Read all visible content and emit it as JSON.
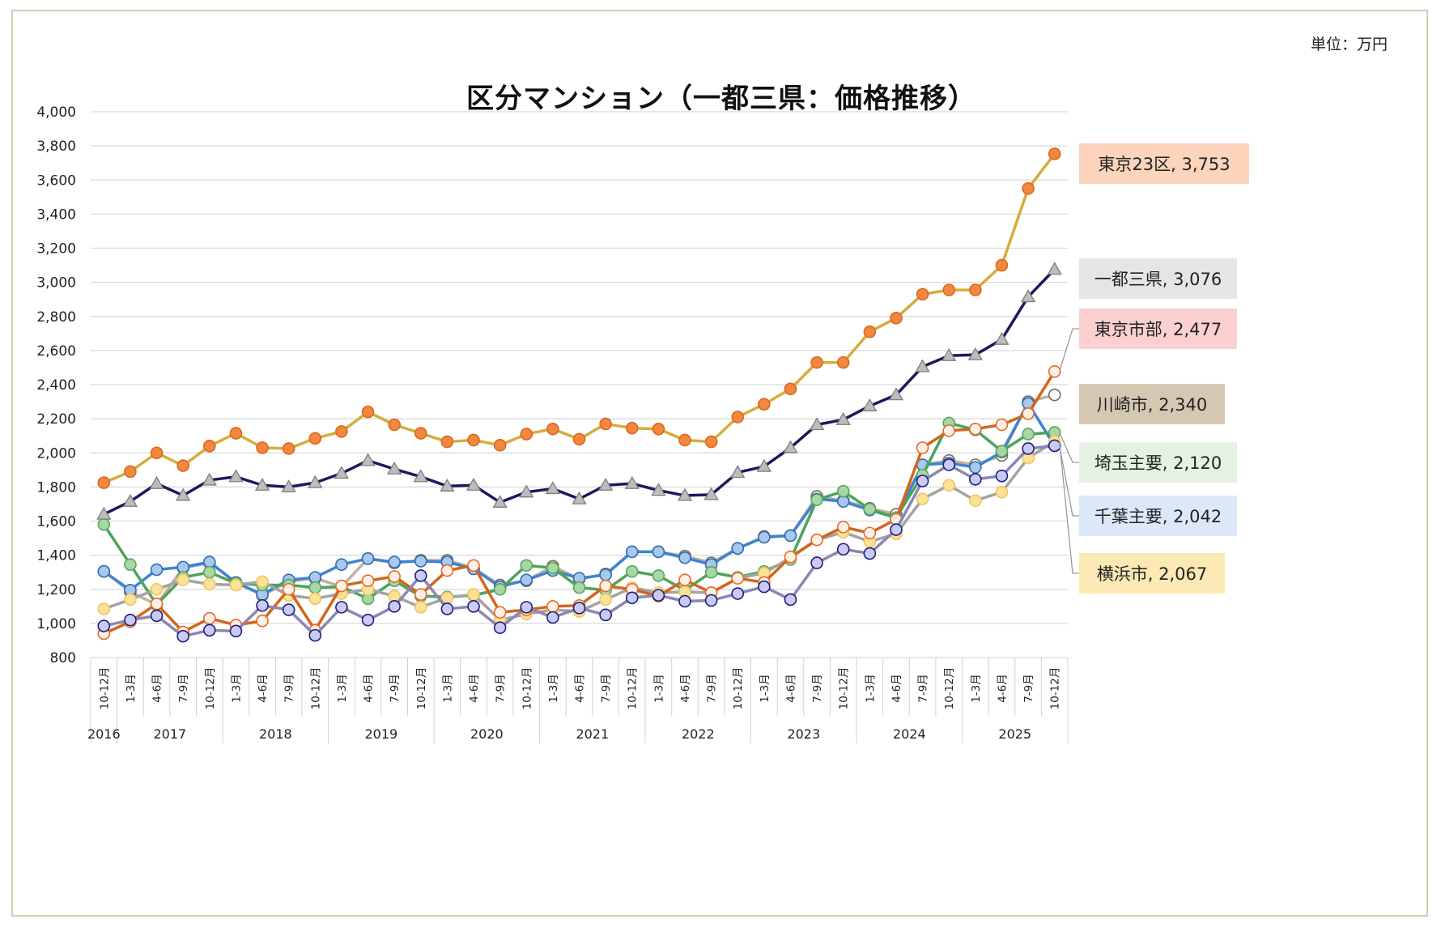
{
  "unit_label": "単位：万円",
  "chart_data": {
    "type": "line",
    "title": "区分マンション（一都三県：価格推移）",
    "ylabel": "",
    "xlabel": "",
    "ylim": [
      800,
      4000
    ],
    "y_ticks": [
      800,
      1000,
      1200,
      1400,
      1600,
      1800,
      2000,
      2200,
      2400,
      2600,
      2800,
      3000,
      3200,
      3400,
      3600,
      3800,
      4000
    ],
    "grid": true,
    "categories": [
      "10-12月",
      "1-3月",
      "4-6月",
      "7-9月",
      "10-12月",
      "1-3月",
      "4-6月",
      "7-9月",
      "10-12月",
      "1-3月",
      "4-6月",
      "7-9月",
      "10-12月",
      "1-3月",
      "4-6月",
      "7-9月",
      "10-12月",
      "1-3月",
      "4-6月",
      "7-9月",
      "10-12月",
      "1-3月",
      "4-6月",
      "7-9月",
      "10-12月",
      "1-3月",
      "4-6月",
      "7-9月",
      "10-12月",
      "1-3月",
      "4-6月",
      "7-9月",
      "10-12月",
      "1-3月",
      "4-6月",
      "7-9月",
      "10-12月"
    ],
    "years": [
      {
        "label": "2016",
        "start": 0,
        "end": 0
      },
      {
        "label": "2017",
        "start": 1,
        "end": 4
      },
      {
        "label": "2018",
        "start": 5,
        "end": 8
      },
      {
        "label": "2019",
        "start": 9,
        "end": 12
      },
      {
        "label": "2020",
        "start": 13,
        "end": 16
      },
      {
        "label": "2021",
        "start": 17,
        "end": 20
      },
      {
        "label": "2022",
        "start": 21,
        "end": 24
      },
      {
        "label": "2023",
        "start": 25,
        "end": 28
      },
      {
        "label": "2024",
        "start": 29,
        "end": 32
      },
      {
        "label": "2025",
        "start": 33,
        "end": 36
      }
    ],
    "series": [
      {
        "name": "川崎市",
        "line_color": "#bfb3a0",
        "fill": "#ffffff",
        "stroke": "#7a6a55",
        "marker": "circle",
        "label_text": "川崎市, 2,340",
        "label_bg": "#d5c8b3",
        "label_anchor": 1680,
        "values": [
          1305,
          1185,
          1110,
          1325,
          1355,
          1240,
          1165,
          1245,
          1265,
          1215,
          1380,
          1355,
          1370,
          1370,
          1325,
          1225,
          1250,
          1335,
          1260,
          1290,
          1420,
          1420,
          1395,
          1355,
          1440,
          1510,
          1515,
          1745,
          1720,
          1675,
          1640,
          1930,
          1955,
          1930,
          1985,
          2300,
          2340
        ]
      },
      {
        "name": "千葉主要",
        "line_color": "#3f84d1",
        "fill": "#a9c8ec",
        "stroke": "#2f6db6",
        "marker": "circle",
        "label_text": "千葉主要, 2,042",
        "label_bg": "#dce8f8",
        "label_anchor": 1400,
        "values": [
          1305,
          1195,
          1315,
          1330,
          1360,
          1240,
          1170,
          1255,
          1270,
          1345,
          1380,
          1360,
          1365,
          1360,
          1320,
          1215,
          1255,
          1310,
          1265,
          1285,
          1420,
          1420,
          1385,
          1345,
          1440,
          1505,
          1515,
          1730,
          1715,
          1665,
          1620,
          1930,
          1940,
          1915,
          2005,
          2290,
          2042
        ]
      },
      {
        "name": "埼玉主要",
        "line_color": "#4fa35a",
        "fill": "#a6d7a4",
        "stroke": "#5aa55f",
        "marker": "circle",
        "label_text": "埼玉主要, 2,120",
        "label_bg": "#e5f2e3",
        "label_anchor": 1490,
        "values": [
          1580,
          1345,
          1110,
          1270,
          1300,
          1235,
          1225,
          1225,
          1210,
          1215,
          1145,
          1250,
          1160,
          1155,
          1165,
          1200,
          1340,
          1325,
          1210,
          1195,
          1305,
          1280,
          1195,
          1300,
          1270,
          1305,
          1375,
          1725,
          1775,
          1670,
          1620,
          1870,
          2175,
          2135,
          2010,
          2110,
          2120
        ]
      },
      {
        "name": "横浜市",
        "line_color": "#a3a3a3",
        "fill": "#fbe29a",
        "stroke": "#f2c45c",
        "marker": "circle",
        "label_text": "横浜市, 2,067",
        "label_bg": "#fbe8b4",
        "label_anchor": 1260,
        "values": [
          1085,
          1140,
          1200,
          1255,
          1230,
          1225,
          1245,
          1165,
          1145,
          1175,
          1200,
          1160,
          1095,
          1150,
          1170,
          1020,
          1055,
          1080,
          1070,
          1140,
          1210,
          1180,
          1185,
          1180,
          1265,
          1295,
          1385,
          1490,
          1535,
          1480,
          1525,
          1730,
          1810,
          1720,
          1770,
          1970,
          2067
        ]
      },
      {
        "name": "東京市部",
        "line_color": "#d2661c",
        "fill": "#fdf0e6",
        "stroke": "#e46b2b",
        "marker": "circle",
        "label_text": "東京市部, 2,477",
        "label_bg": "#fbd0d0",
        "label_anchor": 1575,
        "values": [
          940,
          1010,
          1115,
          950,
          1030,
          990,
          1015,
          1200,
          960,
          1220,
          1250,
          1275,
          1170,
          1310,
          1340,
          1065,
          1080,
          1100,
          1105,
          1220,
          1200,
          1160,
          1255,
          1180,
          1265,
          1240,
          1390,
          1490,
          1565,
          1530,
          1610,
          2030,
          2130,
          2140,
          2165,
          2230,
          2477
        ]
      },
      {
        "name": "一都三県",
        "line_color": "#1a1a5e",
        "fill": "#bdbdbd",
        "stroke": "#7d7d7d",
        "marker": "triangle",
        "label_text": "一都三県, 3,076",
        "label_bg": "#e5e5e5",
        "label_anchor": 0,
        "values": [
          1640,
          1715,
          1820,
          1750,
          1840,
          1860,
          1810,
          1800,
          1825,
          1880,
          1955,
          1905,
          1860,
          1805,
          1810,
          1710,
          1770,
          1790,
          1730,
          1810,
          1820,
          1780,
          1750,
          1755,
          1885,
          1920,
          2030,
          2165,
          2195,
          2275,
          2340,
          2505,
          2570,
          2575,
          2665,
          2915,
          3076
        ]
      },
      {
        "name": "東京23区",
        "line_color": "#d5ad3e",
        "fill": "#f4873e",
        "stroke": "#d66a22",
        "marker": "circle",
        "label_text": "東京23区, 3,753",
        "label_bg": "#fbd4bb",
        "label_anchor": 0,
        "values": [
          1825,
          1890,
          2000,
          1925,
          2040,
          2115,
          2030,
          2025,
          2085,
          2125,
          2240,
          2165,
          2115,
          2065,
          2075,
          2045,
          2110,
          2140,
          2080,
          2170,
          2145,
          2140,
          2075,
          2065,
          2210,
          2285,
          2375,
          2530,
          2530,
          2710,
          2790,
          2930,
          2955,
          2955,
          3100,
          3550,
          3753
        ]
      },
      {
        "name": "千葉主要-markers",
        "line_color": "#8c86b4",
        "fill": "#c9cbf4",
        "stroke": "#1e1e78",
        "marker": "circle",
        "label_text": "",
        "label_bg": "",
        "label_anchor": 0,
        "values": [
          985,
          1020,
          1045,
          925,
          960,
          955,
          1105,
          1080,
          930,
          1095,
          1020,
          1100,
          1280,
          1085,
          1100,
          975,
          1095,
          1035,
          1090,
          1050,
          1150,
          1165,
          1130,
          1135,
          1175,
          1215,
          1140,
          1355,
          1435,
          1410,
          1550,
          1835,
          1930,
          1845,
          1865,
          2025,
          2042
        ]
      }
    ],
    "label_order": [
      "東京23区",
      "一都三県",
      "東京市部",
      "川崎市",
      "埼玉主要",
      "千葉主要",
      "横浜市"
    ]
  }
}
